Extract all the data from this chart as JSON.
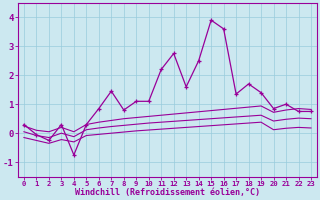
{
  "x": [
    0,
    1,
    2,
    3,
    4,
    5,
    6,
    7,
    8,
    9,
    10,
    11,
    12,
    13,
    14,
    15,
    16,
    17,
    18,
    19,
    20,
    21,
    22,
    23
  ],
  "main_y": [
    0.3,
    -0.05,
    -0.25,
    0.3,
    -0.75,
    0.3,
    0.85,
    1.45,
    0.8,
    1.1,
    1.1,
    2.2,
    2.75,
    1.6,
    2.5,
    3.9,
    3.6,
    1.35,
    1.7,
    1.4,
    0.85,
    1.0,
    0.75,
    0.75
  ],
  "upper_y": [
    0.25,
    0.1,
    0.05,
    0.2,
    0.05,
    0.3,
    0.38,
    0.44,
    0.5,
    0.54,
    0.58,
    0.62,
    0.66,
    0.7,
    0.74,
    0.78,
    0.82,
    0.86,
    0.9,
    0.94,
    0.72,
    0.8,
    0.85,
    0.82
  ],
  "mid_y": [
    0.05,
    -0.08,
    -0.15,
    0.0,
    -0.12,
    0.12,
    0.18,
    0.23,
    0.27,
    0.31,
    0.35,
    0.38,
    0.41,
    0.44,
    0.47,
    0.5,
    0.53,
    0.56,
    0.59,
    0.62,
    0.42,
    0.48,
    0.52,
    0.5
  ],
  "lower_y": [
    -0.15,
    -0.25,
    -0.35,
    -0.22,
    -0.3,
    -0.08,
    -0.04,
    0.0,
    0.04,
    0.08,
    0.11,
    0.14,
    0.17,
    0.2,
    0.23,
    0.26,
    0.29,
    0.32,
    0.35,
    0.38,
    0.12,
    0.17,
    0.2,
    0.18
  ],
  "line_color": "#990099",
  "bg_color": "#cce8f0",
  "grid_color": "#99ccdd",
  "xlabel": "Windchill (Refroidissement éolien,°C)",
  "ylim": [
    -1.5,
    4.5
  ],
  "xlim": [
    -0.5,
    23.5
  ]
}
